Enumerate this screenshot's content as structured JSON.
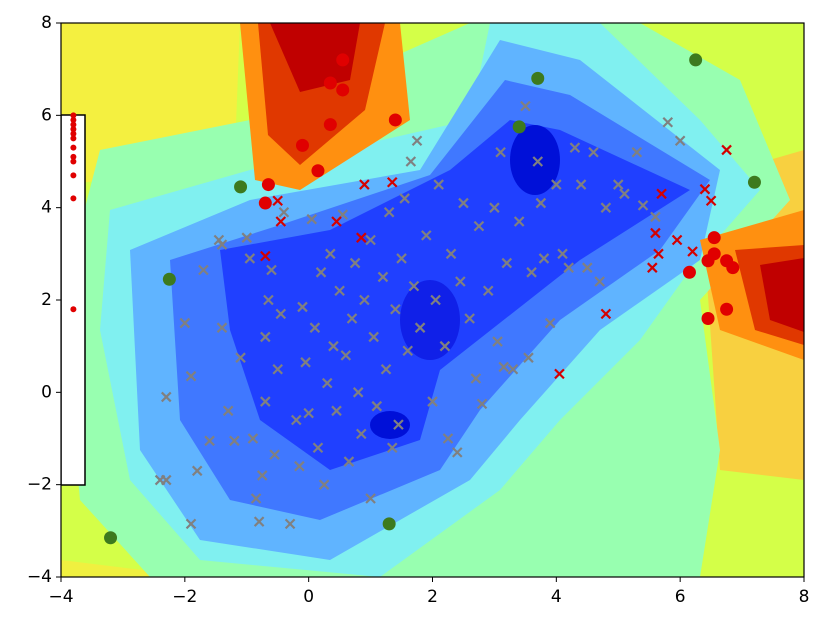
{
  "chart_data": {
    "type": "scatter",
    "xlim": [
      -4,
      8
    ],
    "ylim": [
      -4,
      8
    ],
    "xticks": [
      {
        "value": -4,
        "label": "−4"
      },
      {
        "value": -2,
        "label": "−2"
      },
      0,
      2,
      4,
      6,
      8
    ],
    "yticks": [
      {
        "value": -4,
        "label": "−4"
      },
      {
        "value": -2,
        "label": "−2"
      },
      0,
      2,
      4,
      6,
      8
    ],
    "series": [
      {
        "marker": "x",
        "color": "#808080",
        "x": [
          -2.4,
          -2.3,
          -1.9,
          -2.3,
          -2.0,
          -1.9,
          -1.8,
          -1.7,
          -1.6,
          -1.4,
          -1.4,
          -1.3,
          -1.2,
          -1.1,
          -1.0,
          -0.95,
          -0.9,
          -0.85,
          -0.8,
          -0.75,
          -0.7,
          -0.7,
          -0.65,
          -0.6,
          -0.55,
          -0.5,
          -0.45,
          -0.4,
          -0.3,
          -0.2,
          -0.1,
          -0.05,
          0.0,
          0.05,
          0.1,
          0.15,
          0.2,
          0.25,
          0.3,
          0.35,
          0.4,
          0.45,
          0.5,
          0.55,
          0.6,
          0.65,
          0.7,
          0.75,
          0.8,
          0.85,
          0.9,
          1.0,
          1.05,
          1.1,
          1.2,
          1.25,
          1.3,
          1.35,
          1.4,
          1.45,
          1.5,
          1.55,
          1.6,
          1.65,
          1.7,
          1.75,
          1.8,
          1.9,
          2.0,
          2.05,
          2.1,
          2.2,
          2.3,
          2.4,
          2.45,
          2.5,
          2.6,
          2.7,
          2.75,
          2.8,
          2.9,
          3.0,
          3.05,
          3.1,
          3.2,
          3.3,
          3.4,
          3.5,
          3.6,
          3.7,
          3.75,
          3.8,
          3.9,
          4.0,
          4.1,
          4.2,
          4.3,
          4.4,
          4.6,
          4.7,
          4.8,
          5.0,
          5.3,
          5.4,
          5.6,
          5.8,
          6.0,
          -1.45,
          -0.15,
          1.0,
          2.25,
          3.55,
          4.5,
          5.1,
          3.15
        ],
        "y": [
          -1.9,
          -1.9,
          -2.85,
          -0.1,
          1.5,
          0.35,
          -1.7,
          2.65,
          -1.05,
          1.4,
          3.2,
          -0.4,
          -1.05,
          0.75,
          3.35,
          2.9,
          -1.0,
          -2.3,
          -2.8,
          -1.8,
          -0.2,
          1.2,
          2.0,
          2.65,
          -1.35,
          0.5,
          1.7,
          3.9,
          -2.85,
          -0.6,
          1.85,
          0.65,
          -0.45,
          3.75,
          1.4,
          -1.2,
          2.6,
          -2.0,
          0.2,
          3.0,
          1.0,
          -0.4,
          2.2,
          3.85,
          0.8,
          -1.5,
          1.6,
          2.8,
          0.0,
          -0.9,
          2.0,
          3.3,
          1.2,
          -0.3,
          2.5,
          0.5,
          3.9,
          -1.2,
          1.8,
          -0.7,
          2.9,
          4.2,
          0.9,
          5.0,
          2.3,
          5.45,
          1.4,
          3.4,
          -0.2,
          2.0,
          4.5,
          1.0,
          3.0,
          -1.3,
          2.4,
          4.1,
          1.6,
          0.3,
          3.6,
          -0.25,
          2.2,
          4.0,
          1.1,
          5.2,
          2.8,
          0.5,
          3.7,
          6.2,
          2.6,
          5.0,
          4.1,
          2.9,
          1.5,
          4.5,
          3.0,
          2.7,
          5.3,
          4.5,
          5.2,
          2.4,
          4.0,
          4.5,
          5.2,
          4.05,
          3.8,
          5.85,
          5.45,
          3.3,
          -1.6,
          -2.3,
          -1.0,
          0.75,
          2.7,
          4.3,
          0.55
        ]
      },
      {
        "marker": "x",
        "color": "#d40000",
        "x": [
          -0.5,
          -0.45,
          0.9,
          1.35,
          0.45,
          0.85,
          -0.7,
          5.7,
          6.4,
          6.5,
          6.75,
          5.6,
          5.65,
          5.95,
          6.2,
          5.55,
          4.8,
          4.05
        ],
        "y": [
          4.15,
          3.7,
          4.5,
          4.55,
          3.7,
          3.35,
          2.95,
          4.3,
          4.4,
          4.15,
          5.25,
          3.45,
          3.0,
          3.3,
          3.05,
          2.7,
          1.7,
          0.4
        ]
      },
      {
        "marker": "o",
        "color": "#e00000",
        "x": [
          0.55,
          0.35,
          0.55,
          0.35,
          1.4,
          -0.1,
          0.15,
          -0.65,
          -0.7,
          6.55,
          6.55,
          6.45,
          6.75,
          6.85,
          6.15,
          6.75,
          6.45
        ],
        "y": [
          7.2,
          6.7,
          6.55,
          5.8,
          5.9,
          5.35,
          4.8,
          4.5,
          4.1,
          3.35,
          3.0,
          2.85,
          2.85,
          2.7,
          2.6,
          1.8,
          1.6
        ]
      },
      {
        "marker": ".",
        "color": "#e00000",
        "x": [
          -3.8,
          -3.8,
          -3.8,
          -3.8,
          -3.8,
          -3.8,
          -3.8,
          -3.8,
          -3.8,
          -3.8,
          -3.8,
          -3.8
        ],
        "y": [
          6.0,
          5.9,
          5.8,
          5.7,
          5.6,
          5.5,
          5.3,
          5.1,
          5.0,
          4.7,
          4.2,
          1.8
        ]
      },
      {
        "marker": "o",
        "color": "#3d7a1e",
        "x": [
          -3.2,
          -2.25,
          -1.1,
          1.3,
          3.4,
          3.7,
          6.25,
          7.2
        ],
        "y": [
          -3.15,
          2.45,
          4.45,
          -2.85,
          5.75,
          6.8,
          7.2,
          4.55
        ]
      }
    ]
  }
}
